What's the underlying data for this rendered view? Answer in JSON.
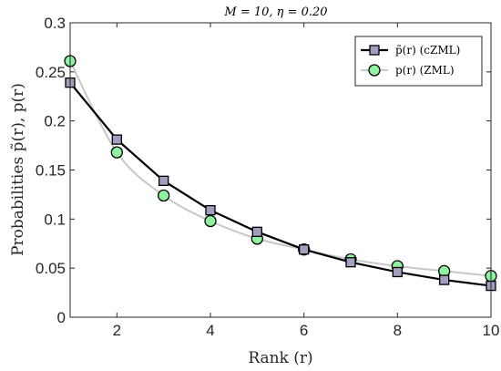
{
  "chart_data": {
    "type": "line",
    "title": "M = 10, η = 0.20",
    "xlabel": "Rank (r)",
    "ylabel": "Probabilities p̃(r), p(r)",
    "xlim": [
      1,
      10
    ],
    "ylim": [
      0,
      0.3
    ],
    "xticks": [
      2,
      4,
      6,
      8,
      10
    ],
    "yticks": [
      0,
      0.05,
      0.1,
      0.15,
      0.2,
      0.25,
      0.3
    ],
    "ytick_labels": [
      "0",
      "0.05",
      "0.1",
      "0.15",
      "0.2",
      "0.25",
      "0.3"
    ],
    "grid": false,
    "legend_position": "top-right",
    "series": [
      {
        "name": "p̃(r) (cZML)",
        "marker": "square",
        "line_color": "#000000",
        "marker_fill": "#9f9fbf",
        "x": [
          1,
          2,
          3,
          4,
          5,
          6,
          7,
          8,
          9,
          10
        ],
        "values": [
          0.239,
          0.181,
          0.139,
          0.109,
          0.087,
          0.069,
          0.056,
          0.046,
          0.038,
          0.032
        ]
      },
      {
        "name": "p(r) (ZML)",
        "marker": "circle",
        "line_color": "#c8c8c8",
        "marker_fill": "#8ff2a0",
        "x": [
          1,
          2,
          3,
          4,
          5,
          6,
          7,
          8,
          9,
          10
        ],
        "values": [
          0.261,
          0.168,
          0.124,
          0.098,
          0.08,
          0.069,
          0.059,
          0.052,
          0.047,
          0.042
        ]
      }
    ]
  }
}
